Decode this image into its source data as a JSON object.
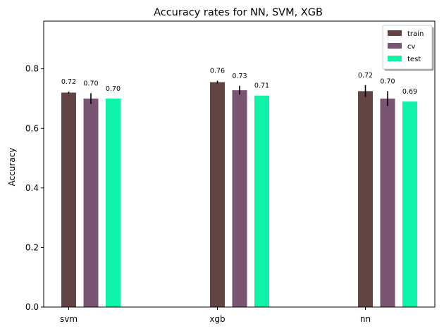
{
  "chart_data": {
    "type": "bar",
    "title": "Accuracy rates for NN, SVM, XGB",
    "xlabel": "",
    "ylabel": "Accuracy",
    "categories": [
      "svm",
      "xgb",
      "nn"
    ],
    "ylim": [
      0,
      0.96
    ],
    "yticks": [
      "0.0",
      "0.2",
      "0.4",
      "0.6",
      "0.8"
    ],
    "legend_position": "top-right",
    "grid": false,
    "series": [
      {
        "name": "train",
        "color": "#634444",
        "values": [
          0.72,
          0.755,
          0.725
        ],
        "labels": [
          "0.72",
          "0.76",
          "0.72"
        ],
        "errors": [
          0.003,
          0.005,
          0.02
        ]
      },
      {
        "name": "cv",
        "color": "#7a5473",
        "values": [
          0.7,
          0.728,
          0.7
        ],
        "labels": [
          "0.70",
          "0.73",
          "0.70"
        ],
        "errors": [
          0.018,
          0.015,
          0.025
        ]
      },
      {
        "name": "test",
        "color": "#0ef2aa",
        "values": [
          0.7,
          0.71,
          0.69
        ],
        "labels": [
          "0.70",
          "0.71",
          "0.69"
        ],
        "errors": [
          0,
          0,
          0
        ]
      }
    ]
  }
}
